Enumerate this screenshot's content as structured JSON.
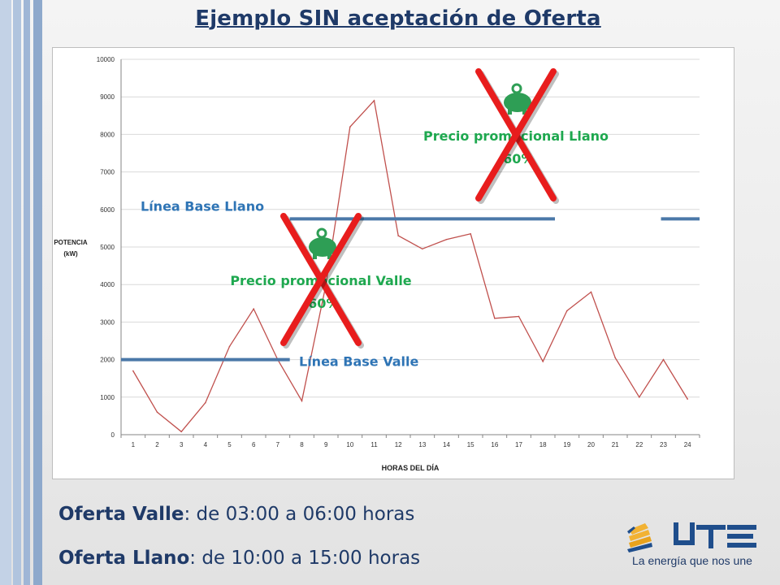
{
  "title": "Ejemplo SIN aceptación de Oferta",
  "chart_data": {
    "type": "line",
    "x": [
      1,
      2,
      3,
      4,
      5,
      6,
      7,
      8,
      9,
      10,
      11,
      12,
      13,
      14,
      15,
      16,
      17,
      18,
      19,
      20,
      21,
      22,
      23,
      24
    ],
    "x_ticks": [
      "1",
      "2",
      "3",
      "4",
      "5",
      "6",
      "7",
      "8",
      "9",
      "10",
      "11",
      "12",
      "13",
      "14",
      "15",
      "16",
      "17",
      "18",
      "19",
      "20",
      "21",
      "22",
      "23",
      "24"
    ],
    "series": [
      {
        "values": [
          1700,
          600,
          80,
          850,
          2350,
          3350,
          2000,
          900,
          4000,
          8200,
          8900,
          5300,
          4950,
          5200,
          5350,
          3100,
          3150,
          1950,
          3300,
          3800,
          2050,
          1000,
          2000,
          950
        ],
        "color": "#c0504d"
      }
    ],
    "ylim": [
      0,
      10000
    ],
    "y_ticks": [
      "0",
      "1000",
      "2000",
      "3000",
      "4000",
      "5000",
      "6000",
      "7000",
      "8000",
      "9000",
      "10000"
    ],
    "xlabel": "HORAS DEL DÍA",
    "ylabel_lines": [
      "POTENCIA",
      "(kW)"
    ],
    "grid": true,
    "baselines": [
      {
        "label": "Línea Base Llano",
        "value": 5750,
        "segments": [
          [
            7.5,
            18.5
          ],
          [
            22.9,
            25
          ]
        ],
        "color": "#4a78a8",
        "label_color": "#2e74b5"
      },
      {
        "label": "Línea Base Valle",
        "value": 2000,
        "segments": [
          [
            0.5,
            7.5
          ]
        ],
        "color": "#4a78a8",
        "label_color": "#2e74b5"
      }
    ],
    "annotations": [
      {
        "lines": [
          "Precio promocional Llano",
          "-60%"
        ],
        "color": "#1ea84f",
        "crossed_out": true
      },
      {
        "lines": [
          "Precio promocional Valle",
          "-60%"
        ],
        "color": "#1ea84f",
        "crossed_out": true
      }
    ]
  },
  "offers": {
    "valle_bold": "Oferta Valle",
    "valle_rest": ": de 03:00 a 06:00 horas",
    "llano_bold": "Oferta Llano",
    "llano_rest": ": de 10:00 a 15:00 horas"
  },
  "logo": {
    "name": "UTE logo",
    "tagline": "La energía que nos une",
    "colors": {
      "brand": "#1f4e8c",
      "accent": "#f2b233"
    }
  }
}
